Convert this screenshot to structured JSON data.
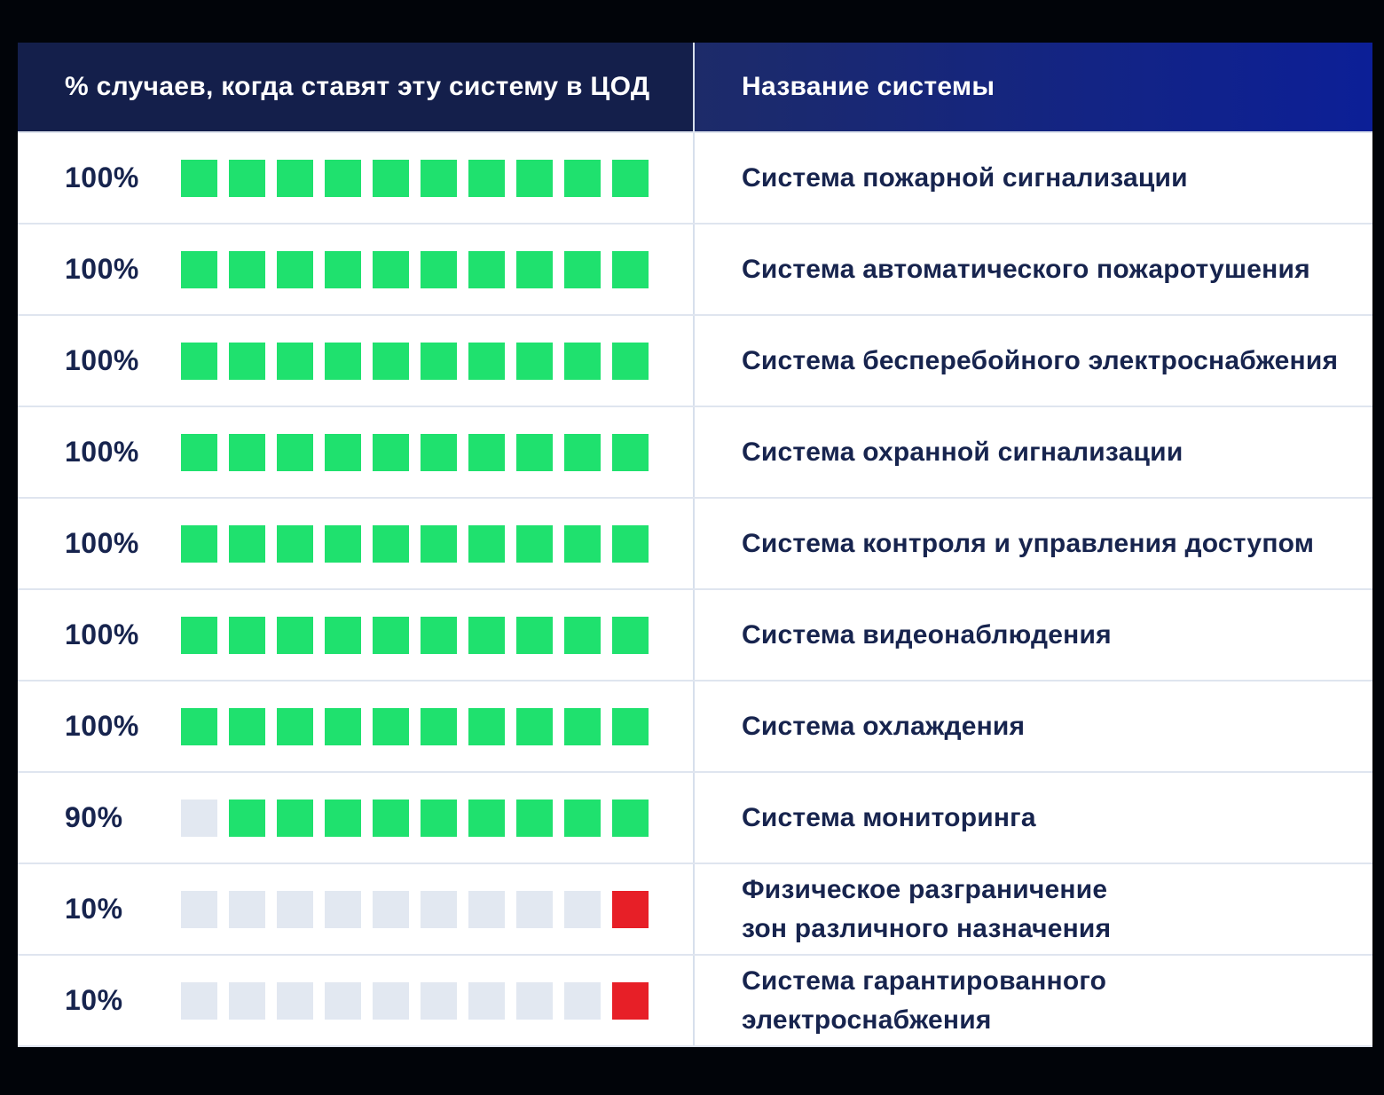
{
  "header": {
    "percent_column": "% случаев, когда ставят эту систему в ЦОД",
    "name_column": "Название системы"
  },
  "rows": [
    {
      "percent": "100%",
      "label": "Система пожарной сигнализации",
      "squares": [
        "green",
        "green",
        "green",
        "green",
        "green",
        "green",
        "green",
        "green",
        "green",
        "green"
      ]
    },
    {
      "percent": "100%",
      "label": "Система автоматического пожаротушения",
      "squares": [
        "green",
        "green",
        "green",
        "green",
        "green",
        "green",
        "green",
        "green",
        "green",
        "green"
      ]
    },
    {
      "percent": "100%",
      "label": "Система бесперебойного электроснабжения",
      "squares": [
        "green",
        "green",
        "green",
        "green",
        "green",
        "green",
        "green",
        "green",
        "green",
        "green"
      ]
    },
    {
      "percent": "100%",
      "label": "Система охранной сигнализации",
      "squares": [
        "green",
        "green",
        "green",
        "green",
        "green",
        "green",
        "green",
        "green",
        "green",
        "green"
      ]
    },
    {
      "percent": "100%",
      "label": "Система контроля и управления доступом",
      "squares": [
        "green",
        "green",
        "green",
        "green",
        "green",
        "green",
        "green",
        "green",
        "green",
        "green"
      ]
    },
    {
      "percent": "100%",
      "label": "Система видеонаблюдения",
      "squares": [
        "green",
        "green",
        "green",
        "green",
        "green",
        "green",
        "green",
        "green",
        "green",
        "green"
      ]
    },
    {
      "percent": "100%",
      "label": "Система охлаждения",
      "squares": [
        "green",
        "green",
        "green",
        "green",
        "green",
        "green",
        "green",
        "green",
        "green",
        "green"
      ]
    },
    {
      "percent": "90%",
      "label": "Система мониторинга",
      "squares": [
        "empty",
        "green",
        "green",
        "green",
        "green",
        "green",
        "green",
        "green",
        "green",
        "green"
      ]
    },
    {
      "percent": "10%",
      "label": "Физическое разграничение\nзон различного назначения",
      "squares": [
        "empty",
        "empty",
        "empty",
        "empty",
        "empty",
        "empty",
        "empty",
        "empty",
        "empty",
        "red"
      ]
    },
    {
      "percent": "10%",
      "label": "Система гарантированного\nэлектроснабжения",
      "squares": [
        "empty",
        "empty",
        "empty",
        "empty",
        "empty",
        "empty",
        "empty",
        "empty",
        "empty",
        "red"
      ]
    }
  ],
  "colors": {
    "outer_bg": "#010409",
    "header_left_bg": "#141f4b",
    "header_right_gradient_from": "#1d2b69",
    "header_right_gradient_to": "#0c1f97",
    "row_bg": "#ffffff",
    "separator": "#dfe5ef",
    "divider": "#d7dfec",
    "text_navy": "#17244e",
    "square_filled_green": "#1fe16e",
    "square_highlight_red": "#e71f27",
    "square_empty_gray": "#e2e8f1",
    "header_text": "#ffffff"
  },
  "chart_data": {
    "type": "bar",
    "title": "% случаев, когда ставят эту систему в ЦОД",
    "xlabel": "Название системы",
    "ylabel": "% случаев",
    "unit": "%",
    "ylim": [
      0,
      100
    ],
    "squares_per_row": 10,
    "representation": "pictogram: 10 squares per row, each square = 10%; green = installed share, gray = empty, red highlights the 10% rows",
    "categories": [
      "Система пожарной сигнализации",
      "Система автоматического пожаротушения",
      "Система бесперебойного электроснабжения",
      "Система охранной сигнализации",
      "Система контроля и управления доступом",
      "Система видеонаблюдения",
      "Система охлаждения",
      "Система мониторинга",
      "Физическое разграничение зон различного назначения",
      "Система гарантированного электроснабжения"
    ],
    "values": [
      100,
      100,
      100,
      100,
      100,
      100,
      100,
      90,
      10,
      10
    ]
  }
}
